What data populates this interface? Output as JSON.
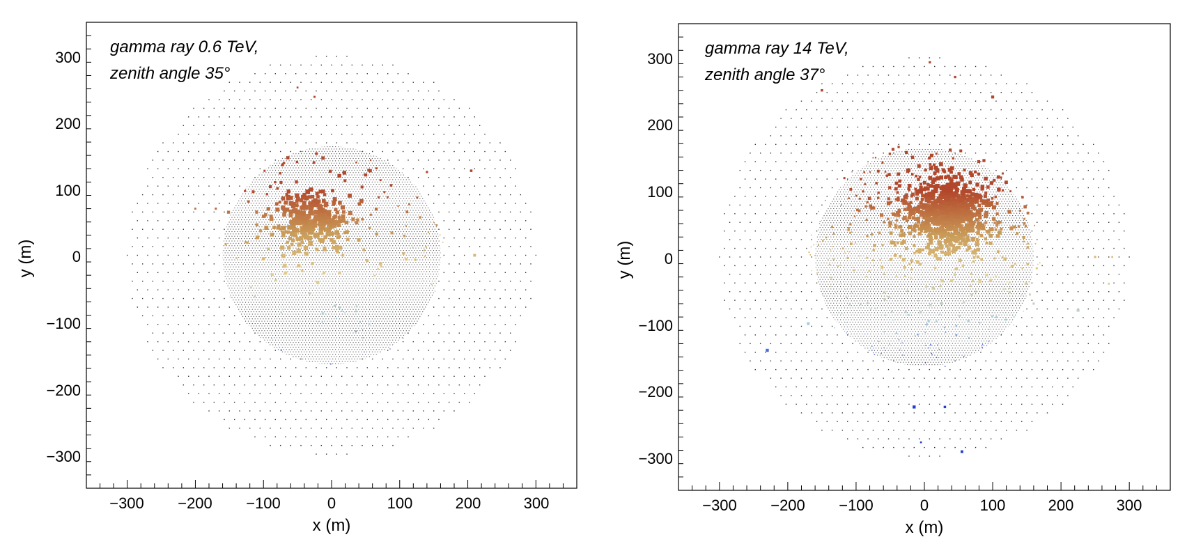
{
  "chart_data": [
    {
      "type": "scatter",
      "panel": "left",
      "xlabel": "x (m)",
      "ylabel": "y (m)",
      "xlim": [
        -360,
        360
      ],
      "ylim": [
        -350,
        350
      ],
      "xticks": [
        -300,
        -200,
        -100,
        0,
        100,
        200,
        300
      ],
      "yticks": [
        -300,
        -200,
        -100,
        0,
        100,
        200,
        300
      ],
      "xtick_labels": [
        "−300",
        "−200",
        "−100",
        "0",
        "100",
        "200",
        "300"
      ],
      "ytick_labels": [
        "−300",
        "−200",
        "−100",
        "0",
        "100",
        "200",
        "300"
      ],
      "annotation": [
        "gamma ray 0.6 TeV,",
        "zenith angle  35°"
      ],
      "particle": "gamma ray",
      "energy": "0.6 TeV",
      "zenith_angle_deg": 35,
      "detector_layout": {
        "outer_array_radius": 300,
        "outer_grid_spacing": 15,
        "inner_array_radius": 160,
        "inner_grid_spacing": 4
      },
      "shower_core": [
        -30,
        50
      ],
      "core_spread": 28,
      "num_hits": 430,
      "hit_extent_radius": 165,
      "outlier_hits": [
        [
          -50,
          252
        ],
        [
          -25,
          238
        ],
        [
          -200,
          70
        ],
        [
          -170,
          70
        ],
        [
          210,
          0
        ],
        [
          205,
          127
        ],
        [
          140,
          125
        ]
      ],
      "colorscale": [
        "#1f3fd0",
        "#a9d3e3",
        "#e4cf8e",
        "#c99a57",
        "#b2472b"
      ],
      "seed": 7
    },
    {
      "type": "scatter",
      "panel": "right",
      "xlabel": "x (m)",
      "ylabel": "y (m)",
      "xlim": [
        -360,
        360
      ],
      "ylim": [
        -350,
        350
      ],
      "xticks": [
        -300,
        -200,
        -100,
        0,
        100,
        200,
        300
      ],
      "yticks": [
        -300,
        -200,
        -100,
        0,
        100,
        200,
        300
      ],
      "xtick_labels": [
        "−300",
        "−200",
        "−100",
        "0",
        "100",
        "200",
        "300"
      ],
      "ytick_labels": [
        "−300",
        "−200",
        "−100",
        "0",
        "100",
        "200",
        "300"
      ],
      "annotation": [
        "gamma ray 14 TeV,",
        "zenith angle  37°"
      ],
      "particle": "gamma ray",
      "energy": "14 TeV",
      "zenith_angle_deg": 37,
      "detector_layout": {
        "outer_array_radius": 300,
        "outer_grid_spacing": 15,
        "inner_array_radius": 160,
        "inner_grid_spacing": 4
      },
      "shower_core": [
        35,
        65
      ],
      "core_spread": 32,
      "num_hits": 1100,
      "hit_extent_radius": 170,
      "outlier_hits": [
        [
          -15,
          -225
        ],
        [
          -5,
          -278
        ],
        [
          55,
          -292
        ],
        [
          30,
          -225
        ],
        [
          -230,
          -140
        ],
        [
          -170,
          -100
        ],
        [
          160,
          -70
        ],
        [
          225,
          -80
        ],
        [
          250,
          0
        ],
        [
          275,
          0
        ],
        [
          270,
          -40
        ],
        [
          8,
          292
        ],
        [
          45,
          270
        ],
        [
          100,
          240
        ],
        [
          -150,
          250
        ]
      ],
      "colorscale": [
        "#1f3fd0",
        "#a9d3e3",
        "#e4cf8e",
        "#c99a57",
        "#b2472b"
      ],
      "seed": 11
    }
  ]
}
